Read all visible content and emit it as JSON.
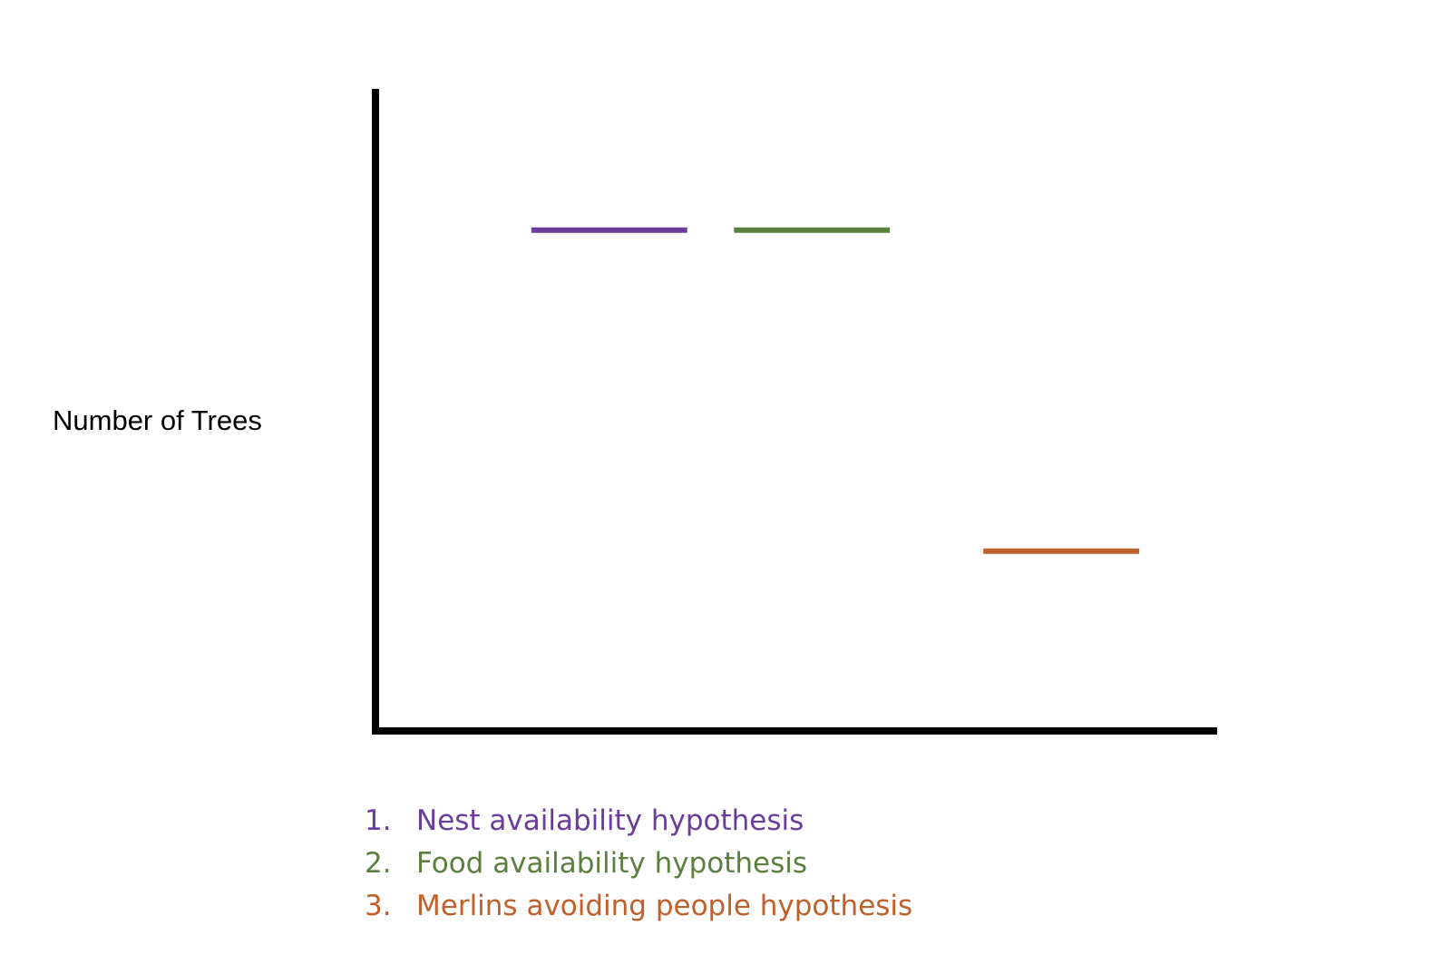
{
  "chart_data": {
    "type": "line",
    "ylabel": "Number of Trees",
    "xlabel": "",
    "title": "",
    "grid": false,
    "series": [
      {
        "name": "Nest availability hypothesis",
        "value": 7.8,
        "x": [
          1,
          2
        ],
        "color": "#6a3d9a",
        "glow": "#b493e6"
      },
      {
        "name": "Food availability hypothesis",
        "value": 7.8,
        "x": [
          2.3,
          3.3
        ],
        "color": "#5a7f3e",
        "glow": "#a9e08a"
      },
      {
        "name": "Merlins avoiding people hypothesis",
        "value": 2.8,
        "x": [
          3.9,
          4.9
        ],
        "color": "#c0602a",
        "glow": "#f6b08a"
      }
    ]
  },
  "legend": {
    "items": [
      {
        "num": "1.",
        "label": "Nest availability hypothesis"
      },
      {
        "num": "2.",
        "label": "Food availability hypothesis"
      },
      {
        "num": "3.",
        "label": "Merlins avoiding people hypothesis"
      }
    ]
  }
}
